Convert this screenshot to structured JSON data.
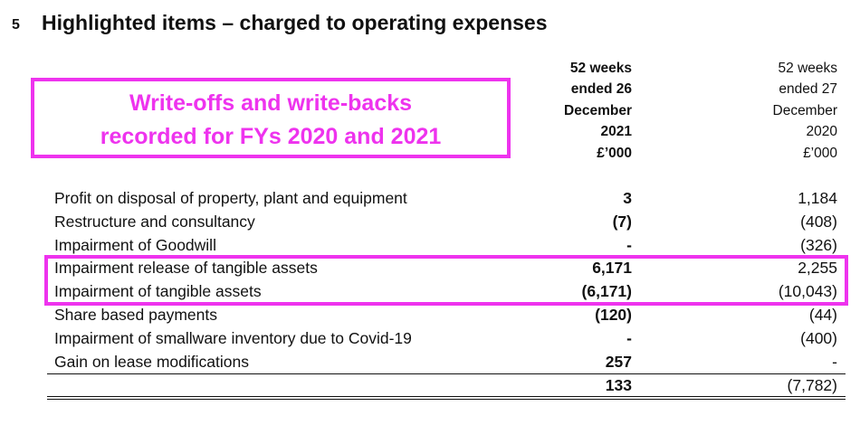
{
  "section": {
    "number": "5",
    "title": "Highlighted items – charged to operating expenses"
  },
  "callout": {
    "line1": "Write-offs and write-backs",
    "line2": "recorded for FYs 2020 and 2021",
    "color": "#ee33ee"
  },
  "columns": [
    {
      "header_lines": [
        "52 weeks",
        "ended 26",
        "December",
        "2021",
        "£’000"
      ]
    },
    {
      "header_lines": [
        "52 weeks",
        "ended 27",
        "December",
        "2020",
        "£’000"
      ]
    }
  ],
  "rows": [
    {
      "label": "Profit on disposal of property, plant and equipment",
      "v2021": "3",
      "v2020": "1,184"
    },
    {
      "label": "Restructure and consultancy",
      "v2021": "(7)",
      "v2020": "(408)"
    },
    {
      "label": "Impairment of Goodwill",
      "v2021": "-",
      "v2020": "(326)"
    },
    {
      "label": "Impairment release of tangible assets",
      "v2021": "6,171",
      "v2020": "2,255"
    },
    {
      "label": "Impairment of tangible assets",
      "v2021": "(6,171)",
      "v2020": "(10,043)"
    },
    {
      "label": "Share based payments",
      "v2021": "(120)",
      "v2020": "(44)"
    },
    {
      "label": "Impairment of smallware inventory due to Covid-19",
      "v2021": "-",
      "v2020": "(400)"
    },
    {
      "label": "Gain on lease modifications",
      "v2021": "257",
      "v2020": "-"
    }
  ],
  "total": {
    "v2021": "133",
    "v2020": "(7,782)"
  }
}
